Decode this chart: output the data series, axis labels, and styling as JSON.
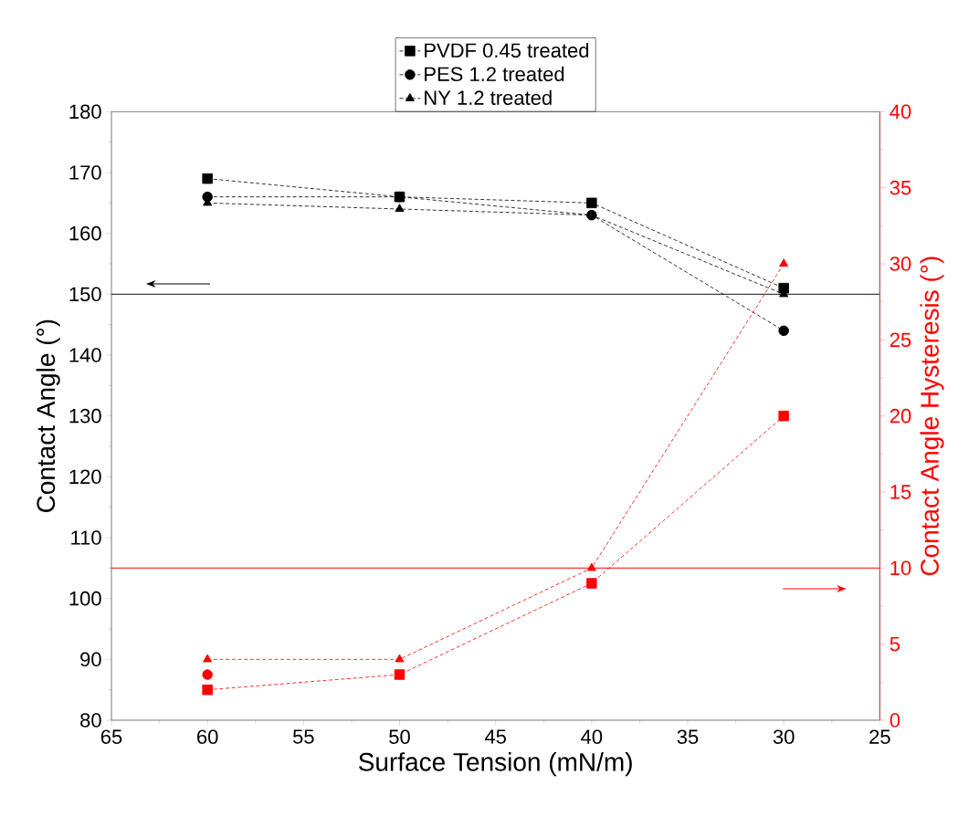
{
  "chart_data": {
    "type": "line",
    "xlabel": "Surface Tension (mN/m)",
    "ylabel": "Contact Angle (°)",
    "y2label": "Contact Angle Hysteresis (°)",
    "x": [
      60,
      50,
      40,
      30
    ],
    "xlim": [
      65,
      25
    ],
    "xticks": [
      65,
      60,
      55,
      50,
      45,
      40,
      35,
      30,
      25
    ],
    "ylim": [
      80,
      180
    ],
    "yticks": [
      80,
      90,
      100,
      110,
      120,
      130,
      140,
      150,
      160,
      170,
      180
    ],
    "y2lim": [
      0,
      40
    ],
    "y2ticks": [
      0,
      5,
      10,
      15,
      20,
      25,
      30,
      35,
      40
    ],
    "legend": "top",
    "line_style": "dashed",
    "series": [
      {
        "name": "PVDF 0.45 treated",
        "color": "#000000",
        "marker": "square",
        "values": [
          169,
          166,
          165,
          151
        ]
      },
      {
        "name": "PES 1.2 treated",
        "color": "#000000",
        "marker": "circle",
        "values": [
          166,
          166,
          163,
          144
        ]
      },
      {
        "name": "NY 1.2 treated",
        "color": "#000000",
        "marker": "triangle",
        "values": [
          165,
          164,
          163,
          150
        ]
      },
      {
        "color": "#ff0000",
        "marker": "square",
        "axis": "y2",
        "values": [
          2,
          3,
          9,
          20
        ]
      },
      {
        "color": "#ff0000",
        "marker": "circle",
        "axis": "y2",
        "values": [
          3,
          null,
          null,
          null
        ]
      },
      {
        "color": "#ff0000",
        "marker": "triangle",
        "axis": "y2",
        "values": [
          4,
          4,
          10,
          30
        ]
      }
    ],
    "ref_lines": [
      {
        "axis": "y",
        "value": 150,
        "color": "#000000"
      },
      {
        "axis": "y2",
        "value": 10,
        "color": "#ff0000"
      }
    ]
  }
}
